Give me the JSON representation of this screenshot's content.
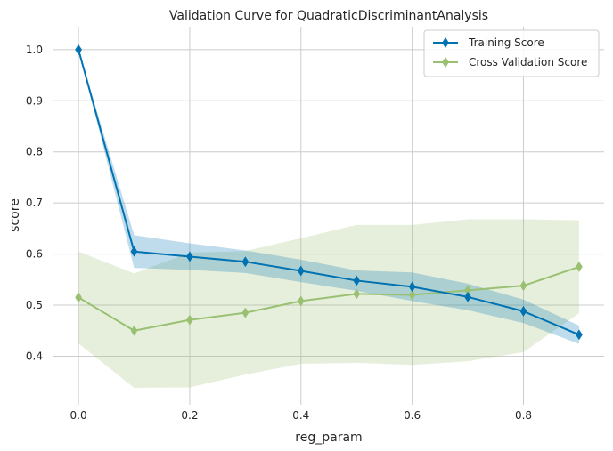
{
  "chart_data": {
    "type": "line",
    "title": "Validation Curve for QuadraticDiscriminantAnalysis",
    "xlabel": "reg_param",
    "ylabel": "score",
    "xlim": [
      -0.045,
      0.945
    ],
    "ylim": [
      0.305,
      1.045
    ],
    "xticks": [
      0.0,
      0.2,
      0.4,
      0.6,
      0.8
    ],
    "yticks": [
      0.4,
      0.5,
      0.6,
      0.7,
      0.8,
      0.9,
      1.0
    ],
    "grid": true,
    "legend_position": "top-right",
    "x": [
      0.0,
      0.1,
      0.2,
      0.3,
      0.4,
      0.5,
      0.6,
      0.7,
      0.8,
      0.9
    ],
    "series": [
      {
        "name": "Training Score",
        "color": "#0072b2",
        "band_color": "#0072b2",
        "values": [
          1.0,
          0.605,
          0.595,
          0.585,
          0.567,
          0.548,
          0.536,
          0.516,
          0.488,
          0.442
        ],
        "band_lower": [
          1.0,
          0.573,
          0.569,
          0.563,
          0.545,
          0.528,
          0.508,
          0.49,
          0.465,
          0.424
        ],
        "band_upper": [
          1.0,
          0.637,
          0.621,
          0.607,
          0.589,
          0.568,
          0.564,
          0.542,
          0.511,
          0.46
        ]
      },
      {
        "name": "Cross Validation Score",
        "color": "#9ac072",
        "band_color": "#9ac072",
        "values": [
          0.515,
          0.45,
          0.471,
          0.485,
          0.508,
          0.522,
          0.52,
          0.529,
          0.538,
          0.575
        ],
        "band_lower": [
          0.425,
          0.338,
          0.339,
          0.364,
          0.385,
          0.387,
          0.383,
          0.39,
          0.408,
          0.484
        ],
        "band_upper": [
          0.605,
          0.562,
          0.603,
          0.606,
          0.631,
          0.657,
          0.657,
          0.668,
          0.668,
          0.666
        ]
      }
    ]
  }
}
